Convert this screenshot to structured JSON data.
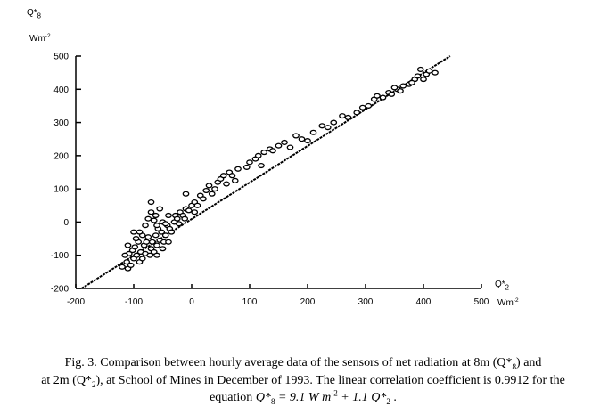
{
  "chart_data": {
    "type": "scatter",
    "y_label": [
      {
        "t": "Q*"
      },
      {
        "sub": "8"
      }
    ],
    "y_unit": [
      {
        "t": "Wm"
      },
      {
        "sup": "-2"
      }
    ],
    "x_label": [
      {
        "t": "Q*"
      },
      {
        "sub": "2"
      }
    ],
    "x_unit": [
      {
        "t": "Wm"
      },
      {
        "sup": "-2"
      }
    ],
    "xlim": [
      -200,
      500
    ],
    "ylim": [
      -200,
      500
    ],
    "xticks": [
      -200,
      -100,
      0,
      100,
      200,
      300,
      400,
      500
    ],
    "yticks": [
      -200,
      -100,
      0,
      100,
      200,
      300,
      400,
      500
    ],
    "color": "#000000",
    "x": [
      -110,
      -105,
      -112,
      -100,
      -95,
      -108,
      -102,
      -98,
      -90,
      -85,
      -88,
      -80,
      -82,
      -78,
      -92,
      -96,
      -85,
      -75,
      -70,
      -72,
      -65,
      -68,
      -60,
      -62,
      -55,
      -58,
      -52,
      -48,
      -45,
      -42,
      -50,
      -40,
      -38,
      -35,
      -30,
      -28,
      -25,
      -22,
      -20,
      -15,
      -12,
      -10,
      -5,
      0,
      -70,
      -75,
      -80,
      -65,
      -60,
      -90,
      -100,
      -70,
      -55,
      -62,
      -110,
      -115,
      -120,
      -60,
      -50,
      -40,
      -45,
      -10,
      5,
      5,
      10,
      15,
      20,
      25,
      30,
      35,
      40,
      45,
      50,
      55,
      60,
      65,
      70,
      75,
      80,
      95,
      100,
      110,
      115,
      120,
      125,
      135,
      140,
      150,
      160,
      170,
      180,
      190,
      200,
      210,
      225,
      235,
      245,
      260,
      270,
      285,
      295,
      305,
      315,
      320,
      330,
      340,
      345,
      355,
      365,
      375,
      385,
      390,
      400,
      405,
      410,
      420,
      395,
      380,
      360,
      350
    ],
    "y": [
      -140,
      -130,
      -120,
      -110,
      -100,
      -95,
      -85,
      -75,
      -120,
      -110,
      -90,
      -95,
      -70,
      -60,
      -60,
      -50,
      -40,
      -45,
      -80,
      -100,
      -90,
      -60,
      -70,
      -40,
      -55,
      -20,
      -30,
      -60,
      -40,
      -10,
      0,
      20,
      -20,
      -30,
      0,
      20,
      10,
      -5,
      30,
      20,
      10,
      40,
      35,
      50,
      30,
      10,
      -10,
      5,
      -10,
      -30,
      -30,
      60,
      40,
      20,
      -70,
      -100,
      -135,
      -100,
      -80,
      -60,
      -5,
      85,
      30,
      60,
      50,
      80,
      70,
      95,
      110,
      85,
      100,
      120,
      130,
      140,
      115,
      150,
      140,
      125,
      160,
      165,
      180,
      190,
      200,
      170,
      210,
      220,
      215,
      230,
      240,
      225,
      260,
      250,
      245,
      270,
      290,
      285,
      300,
      320,
      315,
      330,
      345,
      350,
      370,
      380,
      375,
      390,
      385,
      400,
      410,
      415,
      430,
      440,
      430,
      445,
      455,
      450,
      460,
      420,
      395,
      405
    ],
    "fit_line": {
      "x": [
        -190,
        446
      ],
      "y": [
        -200,
        500
      ]
    }
  },
  "caption": {
    "lines": [
      [
        {
          "t": "Fig. 3.  Comparison between hourly average data of the sensors of net radiation at 8m (Q*"
        },
        {
          "sub": "8"
        },
        {
          "t": ") and"
        }
      ],
      [
        {
          "t": "at 2m (Q*"
        },
        {
          "sub": "2"
        },
        {
          "t": "), at School of Mines in December of 1993. The linear correlation coefficient is 0.9912 for the"
        }
      ],
      [
        {
          "t": "equation "
        },
        {
          "i": "Q*"
        },
        {
          "sub": "8"
        },
        {
          "i": " = 9.1 W m"
        },
        {
          "sup": "-2"
        },
        {
          "i": " + 1.1 Q*"
        },
        {
          "sub": "2"
        },
        {
          "t": " ."
        }
      ]
    ]
  }
}
